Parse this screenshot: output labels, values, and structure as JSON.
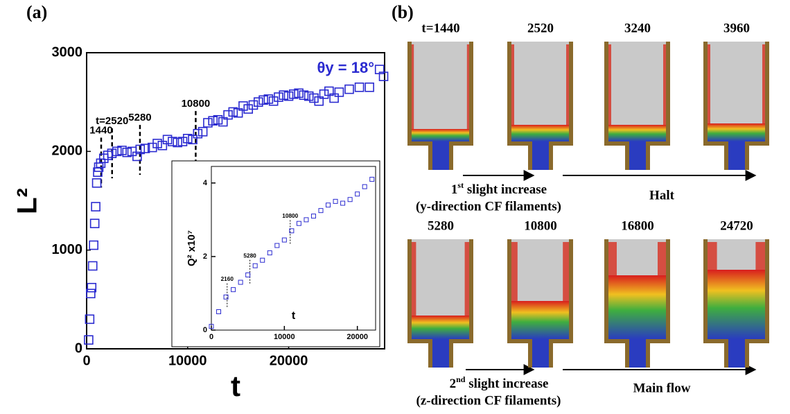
{
  "chart_data": [
    {
      "type": "scatter",
      "panel_label": "(a)",
      "x_label": "t",
      "y_label": "L²",
      "annotation": "θy = 18°",
      "xlim": [
        0,
        29500
      ],
      "ylim": [
        0,
        3000
      ],
      "xticks": [
        0,
        10000,
        20000
      ],
      "yticks": [
        0,
        1000,
        2000,
        3000
      ],
      "x": [
        200,
        300,
        400,
        500,
        600,
        700,
        800,
        900,
        1000,
        1100,
        1200,
        1400,
        1700,
        2100,
        2500,
        3000,
        3500,
        4000,
        4500,
        5000,
        5300,
        5800,
        6500,
        7000,
        7500,
        8000,
        8500,
        9000,
        9500,
        10000,
        10500,
        11000,
        11500,
        12000,
        12500,
        13000,
        13500,
        14000,
        14500,
        15000,
        15500,
        16000,
        16500,
        17000,
        17500,
        18000,
        18500,
        19000,
        19500,
        20000,
        20500,
        21000,
        21500,
        22000,
        22500,
        23000,
        23500,
        24000,
        24500,
        25000,
        26000,
        27000,
        28000,
        29000,
        29400
      ],
      "series": [
        {
          "color": "#2b2bd0",
          "values": [
            90,
            300,
            560,
            620,
            840,
            1050,
            1270,
            1440,
            1680,
            1790,
            1840,
            1880,
            1930,
            1960,
            1980,
            2000,
            2010,
            1990,
            2000,
            1950,
            2020,
            2030,
            2040,
            2080,
            2060,
            2120,
            2100,
            2090,
            2100,
            2130,
            2120,
            2180,
            2200,
            2290,
            2310,
            2320,
            2300,
            2370,
            2400,
            2390,
            2460,
            2430,
            2470,
            2500,
            2520,
            2530,
            2510,
            2550,
            2570,
            2560,
            2580,
            2590,
            2570,
            2560,
            2540,
            2510,
            2580,
            2610,
            2540,
            2600,
            2630,
            2650,
            2650,
            2830,
            2760
          ]
        }
      ],
      "markers": [
        1440,
        {
          "value": 2520,
          "label": "t=2520"
        },
        5280,
        10800
      ]
    },
    {
      "type": "scatter",
      "x_label": "t",
      "y_label": "Q² x10⁷",
      "xlim": [
        0,
        22500
      ],
      "ylim": [
        0,
        4.45
      ],
      "xticks": [
        0,
        10000,
        20000
      ],
      "yticks": [
        0,
        2,
        4
      ],
      "x": [
        0,
        1000,
        2000,
        3000,
        4000,
        5000,
        6000,
        7000,
        8000,
        9000,
        10000,
        11000,
        12000,
        13000,
        14000,
        15000,
        16000,
        17000,
        18000,
        19000,
        20000,
        21000,
        22000
      ],
      "series": [
        {
          "color": "#2b2bd0",
          "values": [
            0.1,
            0.5,
            0.9,
            1.1,
            1.3,
            1.5,
            1.75,
            1.9,
            2.1,
            2.3,
            2.45,
            2.7,
            2.9,
            3.0,
            3.1,
            3.25,
            3.4,
            3.5,
            3.45,
            3.55,
            3.7,
            3.9,
            4.1
          ]
        }
      ],
      "markers": [
        2160,
        5280,
        10800
      ]
    }
  ],
  "panel_b": {
    "label": "(b)",
    "times": [
      "t=1440",
      "2520",
      "3240",
      "3960",
      "5280",
      "10800",
      "16800",
      "24720"
    ],
    "captions": [
      {
        "ordinal": "1",
        "sup": "st",
        "text": " slight increase",
        "sub": "(y-direction CF filaments)"
      },
      {
        "text": "Halt"
      },
      {
        "ordinal": "2",
        "sup": "nd",
        "text": " slight increase",
        "sub": "(z-direction CF filaments)"
      },
      {
        "text": "Main flow"
      }
    ]
  }
}
